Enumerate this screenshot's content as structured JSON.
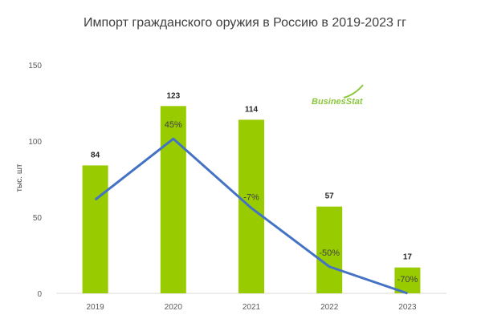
{
  "chart_data": {
    "type": "bar",
    "title": "Импорт гражданского оружия в Россию в 2019-2023 гг",
    "ylabel": "тыс. шт",
    "xlabel": "",
    "ylim": [
      0,
      150
    ],
    "yticks": [
      "0",
      "50",
      "100",
      "150"
    ],
    "categories": [
      "2019",
      "2020",
      "2021",
      "2022",
      "2023"
    ],
    "series": [
      {
        "values": [
          84,
          123,
          114,
          57,
          17
        ],
        "value_labels": [
          "84",
          "123",
          "114",
          "57",
          "17"
        ],
        "color": "#99cc00"
      }
    ],
    "line": {
      "values": [
        61.5,
        101.5,
        56,
        17.5,
        0
      ],
      "labels": [
        "",
        "45%",
        "-7%",
        "-50%",
        "-70%"
      ],
      "color": "#4472c4"
    },
    "grid": false,
    "legend": "none"
  },
  "logo": {
    "text": "BusinesStat",
    "color": "#8dc63f"
  }
}
